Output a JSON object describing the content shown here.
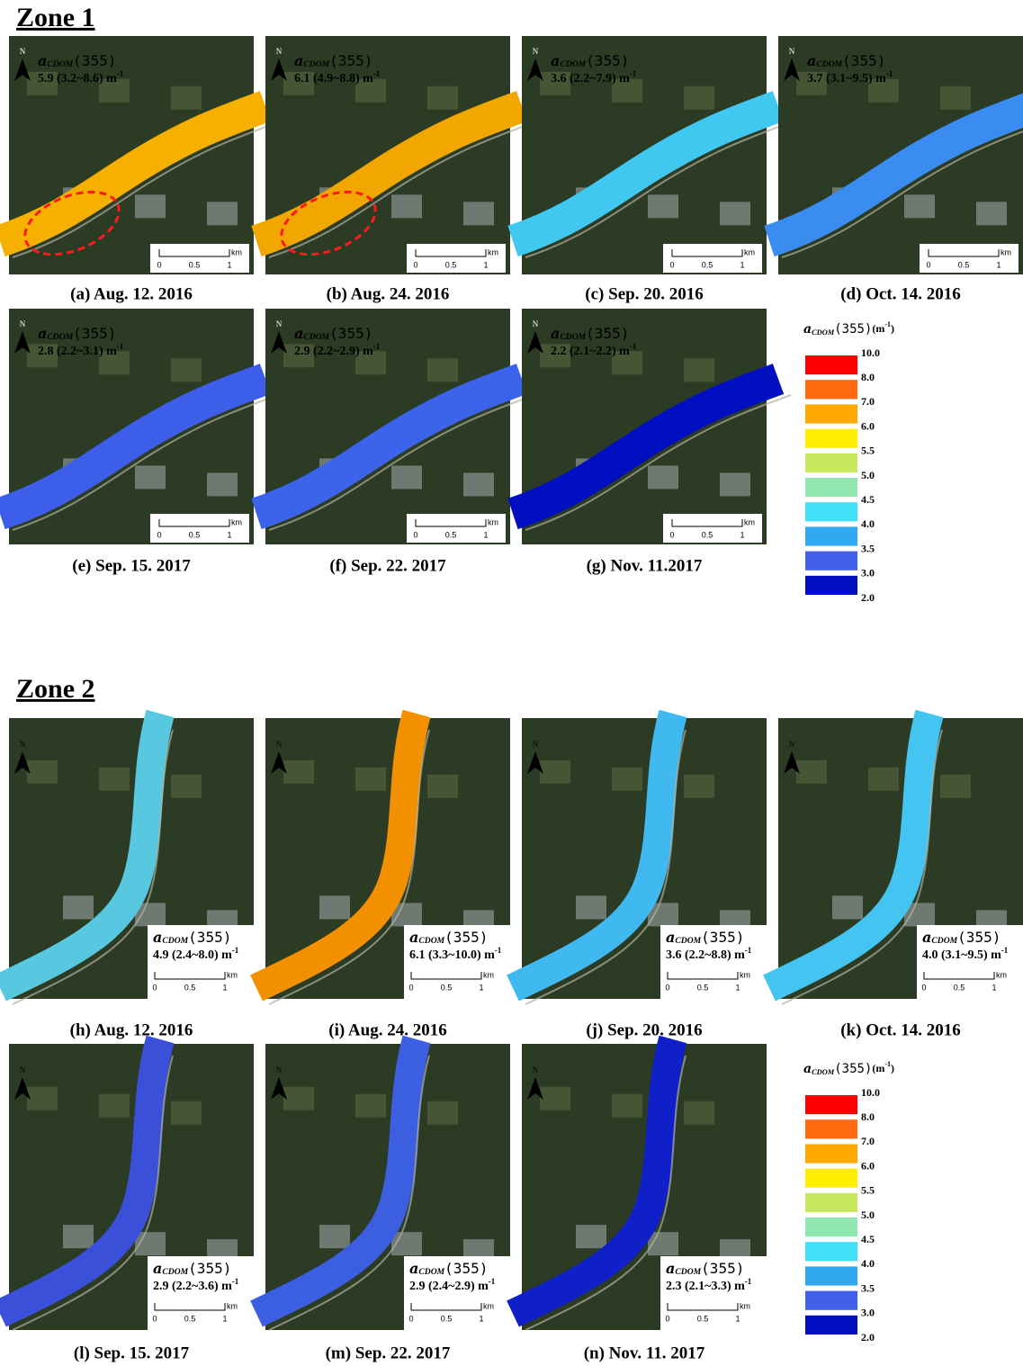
{
  "variable": {
    "symbol": "a",
    "subscript": "CDOM",
    "argument": "(355)",
    "unit": "(m",
    "unit_exp": "-1",
    "unit_close": ")"
  },
  "north": "N",
  "scale_bar": {
    "labels": [
      "0",
      "0.5",
      "1"
    ],
    "unit": "km"
  },
  "stat_exp": "-1",
  "zones": [
    {
      "title": "Zone 1",
      "panels": [
        {
          "caption": "(a) Aug. 12. 2016",
          "stat": "5.9 (3.2~8.6) m",
          "color": "#f5b000",
          "highlight": true
        },
        {
          "caption": "(b) Aug. 24. 2016",
          "stat": "6.1 (4.9~8.8) m",
          "color": "#f2a600",
          "highlight": true
        },
        {
          "caption": "(c) Sep. 20. 2016",
          "stat": "3.6 (2.2~7.9) m",
          "color": "#40c8f0"
        },
        {
          "caption": "(d) Oct. 14. 2016",
          "stat": "3.7 (3.1~9.5) m",
          "color": "#3a8cf0"
        },
        {
          "caption": "(e) Sep. 15. 2017",
          "stat": "2.8 (2.2~3.1) m",
          "color": "#3c5ee8"
        },
        {
          "caption": "(f) Sep. 22. 2017",
          "stat": "2.9 (2.2~2.9) m",
          "color": "#3c64ea"
        },
        {
          "caption": "(g) Nov. 11.2017",
          "stat": "2.2 (2.1~2.2) m",
          "color": "#0010c0"
        }
      ]
    },
    {
      "title": "Zone 2",
      "panels": [
        {
          "caption": "(h) Aug. 12. 2016",
          "stat": "4.9 (2.4~8.0) m",
          "color": "#58c8e0"
        },
        {
          "caption": "(i) Aug. 24. 2016",
          "stat": "6.1 (3.3~10.0) m",
          "color": "#f29000"
        },
        {
          "caption": "(j) Sep. 20. 2016",
          "stat": "3.6 (2.2~8.8) m",
          "color": "#40b8f0"
        },
        {
          "caption": "(k) Oct. 14. 2016",
          "stat": "4.0 (3.1~9.5) m",
          "color": "#44c4f0"
        },
        {
          "caption": "(l) Sep. 15. 2017",
          "stat": "2.9 (2.2~3.6) m",
          "color": "#3a50d8"
        },
        {
          "caption": "(m) Sep. 22. 2017",
          "stat": "2.9 (2.4~2.9) m",
          "color": "#3c5ee0"
        },
        {
          "caption": "(n) Nov. 11. 2017",
          "stat": "2.3 (2.1~3.3) m",
          "color": "#1020c8"
        }
      ]
    }
  ],
  "legend": {
    "labels": [
      "10.0",
      "8.0",
      "7.0",
      "6.0",
      "5.5",
      "5.0",
      "4.5",
      "4.0",
      "3.5",
      "3.0",
      "2.0"
    ],
    "colors": [
      "#ff0000",
      "#ff6a10",
      "#ffa800",
      "#ffee00",
      "#c8e860",
      "#90e8b0",
      "#40e0f8",
      "#30a8f0",
      "#4060e8",
      "#0010c0"
    ]
  }
}
